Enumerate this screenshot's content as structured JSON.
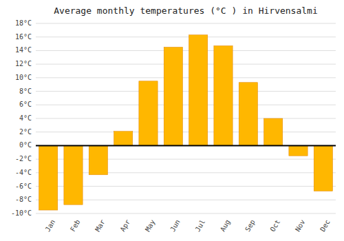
{
  "chart_data": {
    "type": "bar",
    "title": "Average monthly temperatures (°C ) in Hirvensalmi",
    "categories": [
      "Jan",
      "Feb",
      "Mar",
      "Apr",
      "May",
      "Jun",
      "Jul",
      "Aug",
      "Sep",
      "Oct",
      "Nov",
      "Dec"
    ],
    "values": [
      -9.5,
      -8.7,
      -4.3,
      2.1,
      9.5,
      14.5,
      16.3,
      14.7,
      9.3,
      4.0,
      -1.5,
      -6.7
    ],
    "color": "#FFB700",
    "ylim": [
      -10,
      18
    ],
    "yticks": [
      {
        "value": -10,
        "label": "-10°C"
      },
      {
        "value": -8,
        "label": "-8°C"
      },
      {
        "value": -6,
        "label": "-6°C"
      },
      {
        "value": -4,
        "label": "-4°C"
      },
      {
        "value": -2,
        "label": "-2°C"
      },
      {
        "value": 0,
        "label": "0°C"
      },
      {
        "value": 2,
        "label": "2°C"
      },
      {
        "value": 4,
        "label": "4°C"
      },
      {
        "value": 6,
        "label": "6°C"
      },
      {
        "value": 8,
        "label": "8°C"
      },
      {
        "value": 10,
        "label": "10°C"
      },
      {
        "value": 12,
        "label": "12°C"
      },
      {
        "value": 14,
        "label": "14°C"
      },
      {
        "value": 16,
        "label": "16°C"
      },
      {
        "value": 18,
        "label": "18°C"
      }
    ],
    "grid": true
  }
}
